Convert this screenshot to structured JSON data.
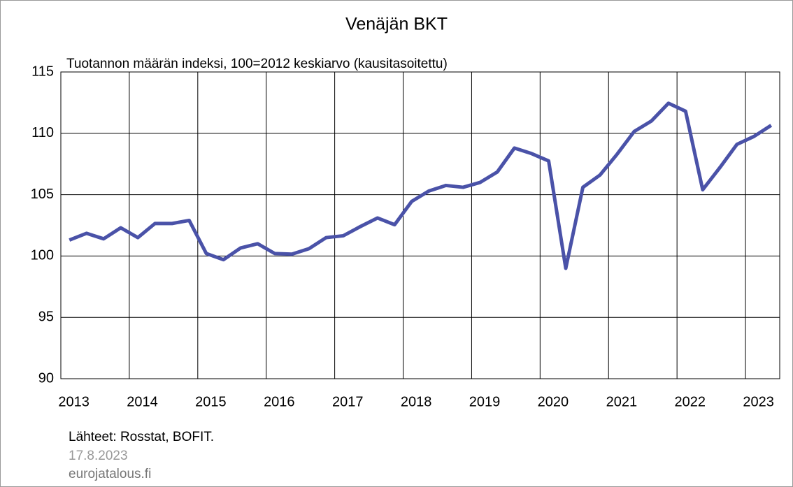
{
  "chart_data": {
    "type": "line",
    "title": "Venäjän BKT",
    "subtitle": "Tuotannon määrän indeksi, 100=2012 keskiarvo (kausitasoitettu)",
    "source": "Lähteet: Rosstat, BOFIT.",
    "date": "17.8.2023",
    "site": "eurojatalous.fi",
    "x": [
      2013.125,
      2013.375,
      2013.625,
      2013.875,
      2014.125,
      2014.375,
      2014.625,
      2014.875,
      2015.125,
      2015.375,
      2015.625,
      2015.875,
      2016.125,
      2016.375,
      2016.625,
      2016.875,
      2017.125,
      2017.375,
      2017.625,
      2017.875,
      2018.125,
      2018.375,
      2018.625,
      2018.875,
      2019.125,
      2019.375,
      2019.625,
      2019.875,
      2020.125,
      2020.375,
      2020.625,
      2020.875,
      2021.125,
      2021.375,
      2021.625,
      2021.875,
      2022.125,
      2022.375,
      2022.625,
      2022.875,
      2023.125,
      2023.375
    ],
    "series": [
      {
        "color": "#4a52a8",
        "values": [
          101.3,
          101.85,
          101.4,
          102.3,
          101.5,
          102.65,
          102.65,
          102.9,
          100.2,
          99.7,
          100.65,
          101.0,
          100.2,
          100.15,
          100.6,
          101.5,
          101.65,
          102.4,
          103.1,
          102.55,
          104.45,
          105.3,
          105.75,
          105.6,
          106.0,
          106.85,
          108.8,
          108.35,
          107.75,
          99.0,
          105.6,
          106.6,
          108.3,
          110.15,
          111.0,
          112.45,
          111.8,
          105.4,
          107.2,
          109.1,
          109.75,
          110.65
        ]
      }
    ],
    "xlim": [
      2013,
      2023.5
    ],
    "xticks": [
      2013,
      2014,
      2015,
      2016,
      2017,
      2018,
      2019,
      2020,
      2021,
      2022,
      2023
    ],
    "ylim": [
      90,
      115
    ],
    "yticks": [
      90,
      95,
      100,
      105,
      110,
      115
    ],
    "grid": true
  }
}
